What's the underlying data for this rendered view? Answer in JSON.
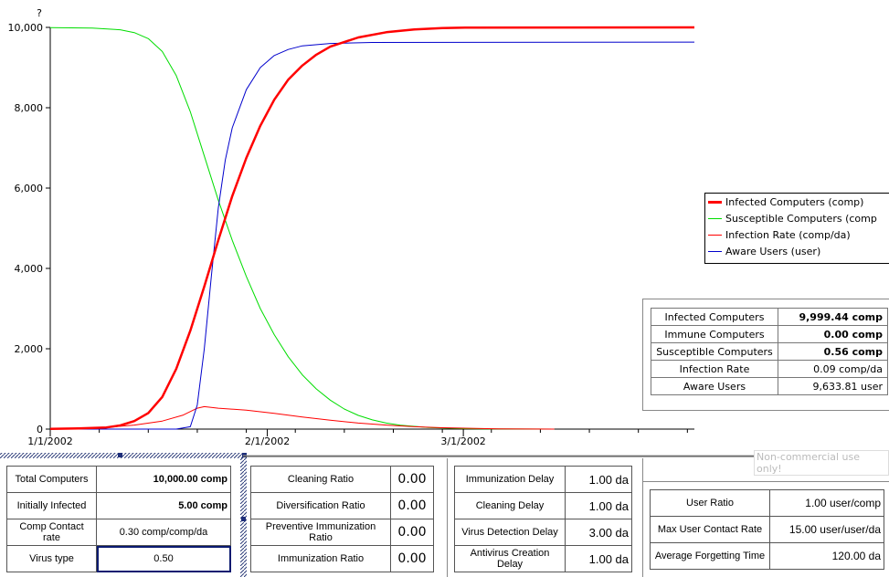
{
  "chart_data": {
    "type": "line",
    "title": "",
    "y_axis_label": "?",
    "ylim": [
      0,
      10000
    ],
    "y_ticks": [
      "10,000",
      "8,000",
      "6,000",
      "4,000",
      "2,000",
      "0"
    ],
    "x_ticks": [
      "1/1/2002",
      "2/1/2002",
      "3/1/2002"
    ],
    "x_tick_days": [
      0,
      31,
      59
    ],
    "xlim_days": [
      0,
      92
    ],
    "series": [
      {
        "name": "Infected Computers (comp)",
        "color": "#ff0000",
        "width": 2.5,
        "points": [
          [
            0,
            5
          ],
          [
            4,
            15
          ],
          [
            8,
            40
          ],
          [
            10,
            90
          ],
          [
            12,
            200
          ],
          [
            14,
            400
          ],
          [
            16,
            800
          ],
          [
            18,
            1500
          ],
          [
            20,
            2450
          ],
          [
            22,
            3550
          ],
          [
            24,
            4700
          ],
          [
            26,
            5800
          ],
          [
            28,
            6750
          ],
          [
            30,
            7550
          ],
          [
            32,
            8200
          ],
          [
            34,
            8700
          ],
          [
            36,
            9050
          ],
          [
            38,
            9320
          ],
          [
            40,
            9520
          ],
          [
            44,
            9750
          ],
          [
            48,
            9880
          ],
          [
            52,
            9950
          ],
          [
            56,
            9985
          ],
          [
            60,
            9995
          ],
          [
            92,
            9999.44
          ]
        ]
      },
      {
        "name": "Susceptible Computers (comp",
        "color": "#00dd00",
        "width": 1,
        "points": [
          [
            0,
            9995
          ],
          [
            6,
            9985
          ],
          [
            10,
            9940
          ],
          [
            12,
            9870
          ],
          [
            14,
            9720
          ],
          [
            16,
            9400
          ],
          [
            18,
            8800
          ],
          [
            20,
            7900
          ],
          [
            22,
            6800
          ],
          [
            24,
            5700
          ],
          [
            26,
            4700
          ],
          [
            28,
            3800
          ],
          [
            30,
            3000
          ],
          [
            32,
            2350
          ],
          [
            34,
            1800
          ],
          [
            36,
            1350
          ],
          [
            38,
            1000
          ],
          [
            40,
            720
          ],
          [
            42,
            500
          ],
          [
            44,
            340
          ],
          [
            46,
            230
          ],
          [
            48,
            150
          ],
          [
            50,
            95
          ],
          [
            54,
            40
          ],
          [
            58,
            15
          ],
          [
            62,
            5
          ],
          [
            72,
            0.56
          ]
        ]
      },
      {
        "name": "Infection Rate (comp/da)",
        "color": "#ff0000",
        "width": 1,
        "points": [
          [
            0,
            2
          ],
          [
            8,
            40
          ],
          [
            12,
            100
          ],
          [
            16,
            200
          ],
          [
            19,
            350
          ],
          [
            21,
            520
          ],
          [
            22,
            560
          ],
          [
            24,
            520
          ],
          [
            28,
            470
          ],
          [
            32,
            390
          ],
          [
            36,
            300
          ],
          [
            40,
            220
          ],
          [
            44,
            150
          ],
          [
            48,
            100
          ],
          [
            52,
            60
          ],
          [
            56,
            35
          ],
          [
            60,
            20
          ],
          [
            64,
            5
          ],
          [
            72,
            0.09
          ]
        ]
      },
      {
        "name": "Aware Users (user)",
        "color": "#0000cc",
        "width": 1,
        "points": [
          [
            0,
            0
          ],
          [
            18,
            0
          ],
          [
            20,
            60
          ],
          [
            21,
            600
          ],
          [
            22,
            2000
          ],
          [
            23,
            3800
          ],
          [
            24,
            5500
          ],
          [
            25,
            6700
          ],
          [
            26,
            7500
          ],
          [
            28,
            8450
          ],
          [
            30,
            9000
          ],
          [
            32,
            9300
          ],
          [
            34,
            9450
          ],
          [
            36,
            9540
          ],
          [
            40,
            9600
          ],
          [
            46,
            9625
          ],
          [
            92,
            9633.81
          ]
        ]
      }
    ]
  },
  "summary": {
    "rows": [
      {
        "label": "Infected Computers",
        "value": "9,999.44 comp",
        "bold": true
      },
      {
        "label": "Immune Computers",
        "value": "0.00 comp",
        "bold": true
      },
      {
        "label": "Susceptible Computers",
        "value": "0.56 comp",
        "bold": true
      },
      {
        "label": "Infection Rate",
        "value": "0.09 comp/da",
        "bold": false
      },
      {
        "label": "Aware Users",
        "value": "9,633.81 user",
        "bold": false
      }
    ]
  },
  "watermark": "Non-commercial use only!",
  "panel1": {
    "total_computers": {
      "label": "Total Computers",
      "value": "10,000.00 comp"
    },
    "initially_infected": {
      "label": "Initially Infected",
      "value": "5.00 comp"
    },
    "contact_rate": {
      "label": "Comp Contact rate",
      "value": "0.30 comp/comp/da"
    },
    "virus_type": {
      "label": "Virus type",
      "value": "0.50"
    }
  },
  "panel2": {
    "cleaning_ratio": {
      "label": "Cleaning Ratio",
      "value": "0.00"
    },
    "diversification_ratio": {
      "label": "Diversification Ratio",
      "value": "0.00"
    },
    "preventive_ratio": {
      "label": "Preventive Immunization Ratio",
      "value": "0.00"
    },
    "immunization_ratio": {
      "label": "Immunization Ratio",
      "value": "0.00"
    }
  },
  "panel3": {
    "immunization_delay": {
      "label": "Immunization Delay",
      "value": "1.00 da"
    },
    "cleaning_delay": {
      "label": "Cleaning Delay",
      "value": "1.00 da"
    },
    "detection_delay": {
      "label": "Virus Detection Delay",
      "value": "3.00 da"
    },
    "antivirus_delay": {
      "label": "Antivirus Creation Delay",
      "value": "1.00 da"
    }
  },
  "panel4": {
    "user_ratio": {
      "label": "User Ratio",
      "value": "1.00 user/comp"
    },
    "max_contact": {
      "label": "Max User Contact Rate",
      "value": "15.00 user/user/da"
    },
    "forgetting": {
      "label": "Average Forgetting Time",
      "value": "120.00 da"
    }
  }
}
